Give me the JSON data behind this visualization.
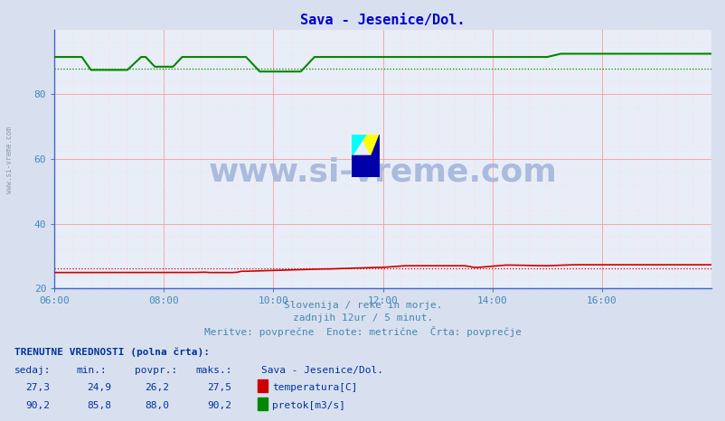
{
  "title": "Sava - Jesenice/Dol.",
  "title_color": "#0000cc",
  "bg_color": "#d8e0f0",
  "plot_bg_color": "#e8eef8",
  "grid_color_major": "#ff9999",
  "grid_color_minor": "#ffdddd",
  "tick_color": "#4488bb",
  "temp_color": "#cc0000",
  "flow_color": "#008800",
  "height_color": "#0000ff",
  "watermark_text": "www.si-vreme.com",
  "watermark_color": "#aabbdd",
  "sidebar_text": "www.si-vreme.com",
  "sidebar_color": "#8899aa",
  "footer_line1": "Slovenija / reke in morje.",
  "footer_line2": "zadnjih 12ur / 5 minut.",
  "footer_line3": "Meritve: povprečne  Enote: metrične  Črta: povprečje",
  "footer_color": "#4488aa",
  "table_header": "TRENUTNE VREDNOSTI (polna črta):",
  "col_headers": [
    "sedaj:",
    "min.:",
    "povpr.:",
    "maks.:",
    "Sava - Jesenice/Dol."
  ],
  "temp_row": [
    "27,3",
    "24,9",
    "26,2",
    "27,5",
    "temperatura[C]"
  ],
  "flow_row": [
    "90,2",
    "85,8",
    "88,0",
    "90,2",
    "pretok[m3/s]"
  ],
  "table_color": "#003399",
  "table_header_color": "#006600",
  "temp_avg": 26.2,
  "flow_avg": 88.0,
  "temp_min": 24.9,
  "temp_max": 27.5,
  "flow_min": 85.8,
  "flow_max": 90.2,
  "ylim": [
    20,
    100
  ],
  "yticks": [
    20,
    40,
    60,
    80
  ],
  "n_points": 145
}
